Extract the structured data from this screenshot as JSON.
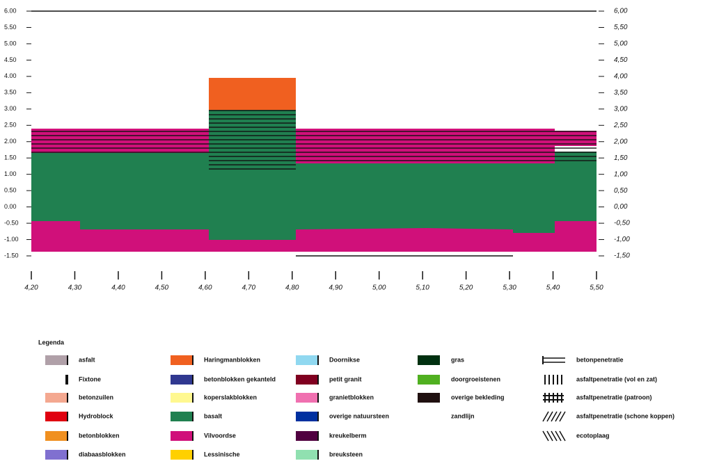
{
  "left_axis": {
    "labels": [
      "6.00",
      "5.50",
      "5.00",
      "4.50",
      "4.00",
      "3.50",
      "3.00",
      "2.50",
      "2.00",
      "1.50",
      "1.00",
      "0.50",
      "0.00",
      "-0.50",
      "-1.00",
      "-1.50"
    ]
  },
  "right_axis": {
    "labels": [
      "6,00",
      "5,50",
      "5,00",
      "4,50",
      "4,00",
      "3,50",
      "3,00",
      "2,50",
      "2,00",
      "1,50",
      "1,00",
      "0,50",
      "0,00",
      "-0,50",
      "-1,00",
      "-1,50"
    ]
  },
  "x_axis": {
    "labels": [
      "4,20",
      "4,30",
      "4,40",
      "4,50",
      "4,60",
      "4,70",
      "4,80",
      "4,90",
      "5,00",
      "5,10",
      "5,20",
      "5,30",
      "5,40",
      "5,50"
    ]
  },
  "legend": {
    "title": "Legenda",
    "columns": [
      [
        "asfalt",
        "Fixtone",
        "betonzuilen",
        "Hydroblock",
        "betonblokken",
        "diabaasblokken"
      ],
      [
        "Haringmanblokken",
        "betonblokken gekanteld",
        "koperslakblokken",
        "basalt",
        "Vilvoordse",
        "Lessinische"
      ],
      [
        "Doornikse",
        "petit granit",
        "granietblokken",
        "overige natuursteen",
        "kreukelberm",
        "breuksteen"
      ],
      [
        "gras",
        "doorgroeistenen",
        "overige bekleding",
        "zandlijn"
      ],
      [
        "betonpenetratie",
        "asfaltpenetratie (vol en zat)",
        "asfaltpenetratie (patroon)",
        "asfaltpenetratie (schone koppen)",
        "ecotoplaag"
      ]
    ]
  }
}
